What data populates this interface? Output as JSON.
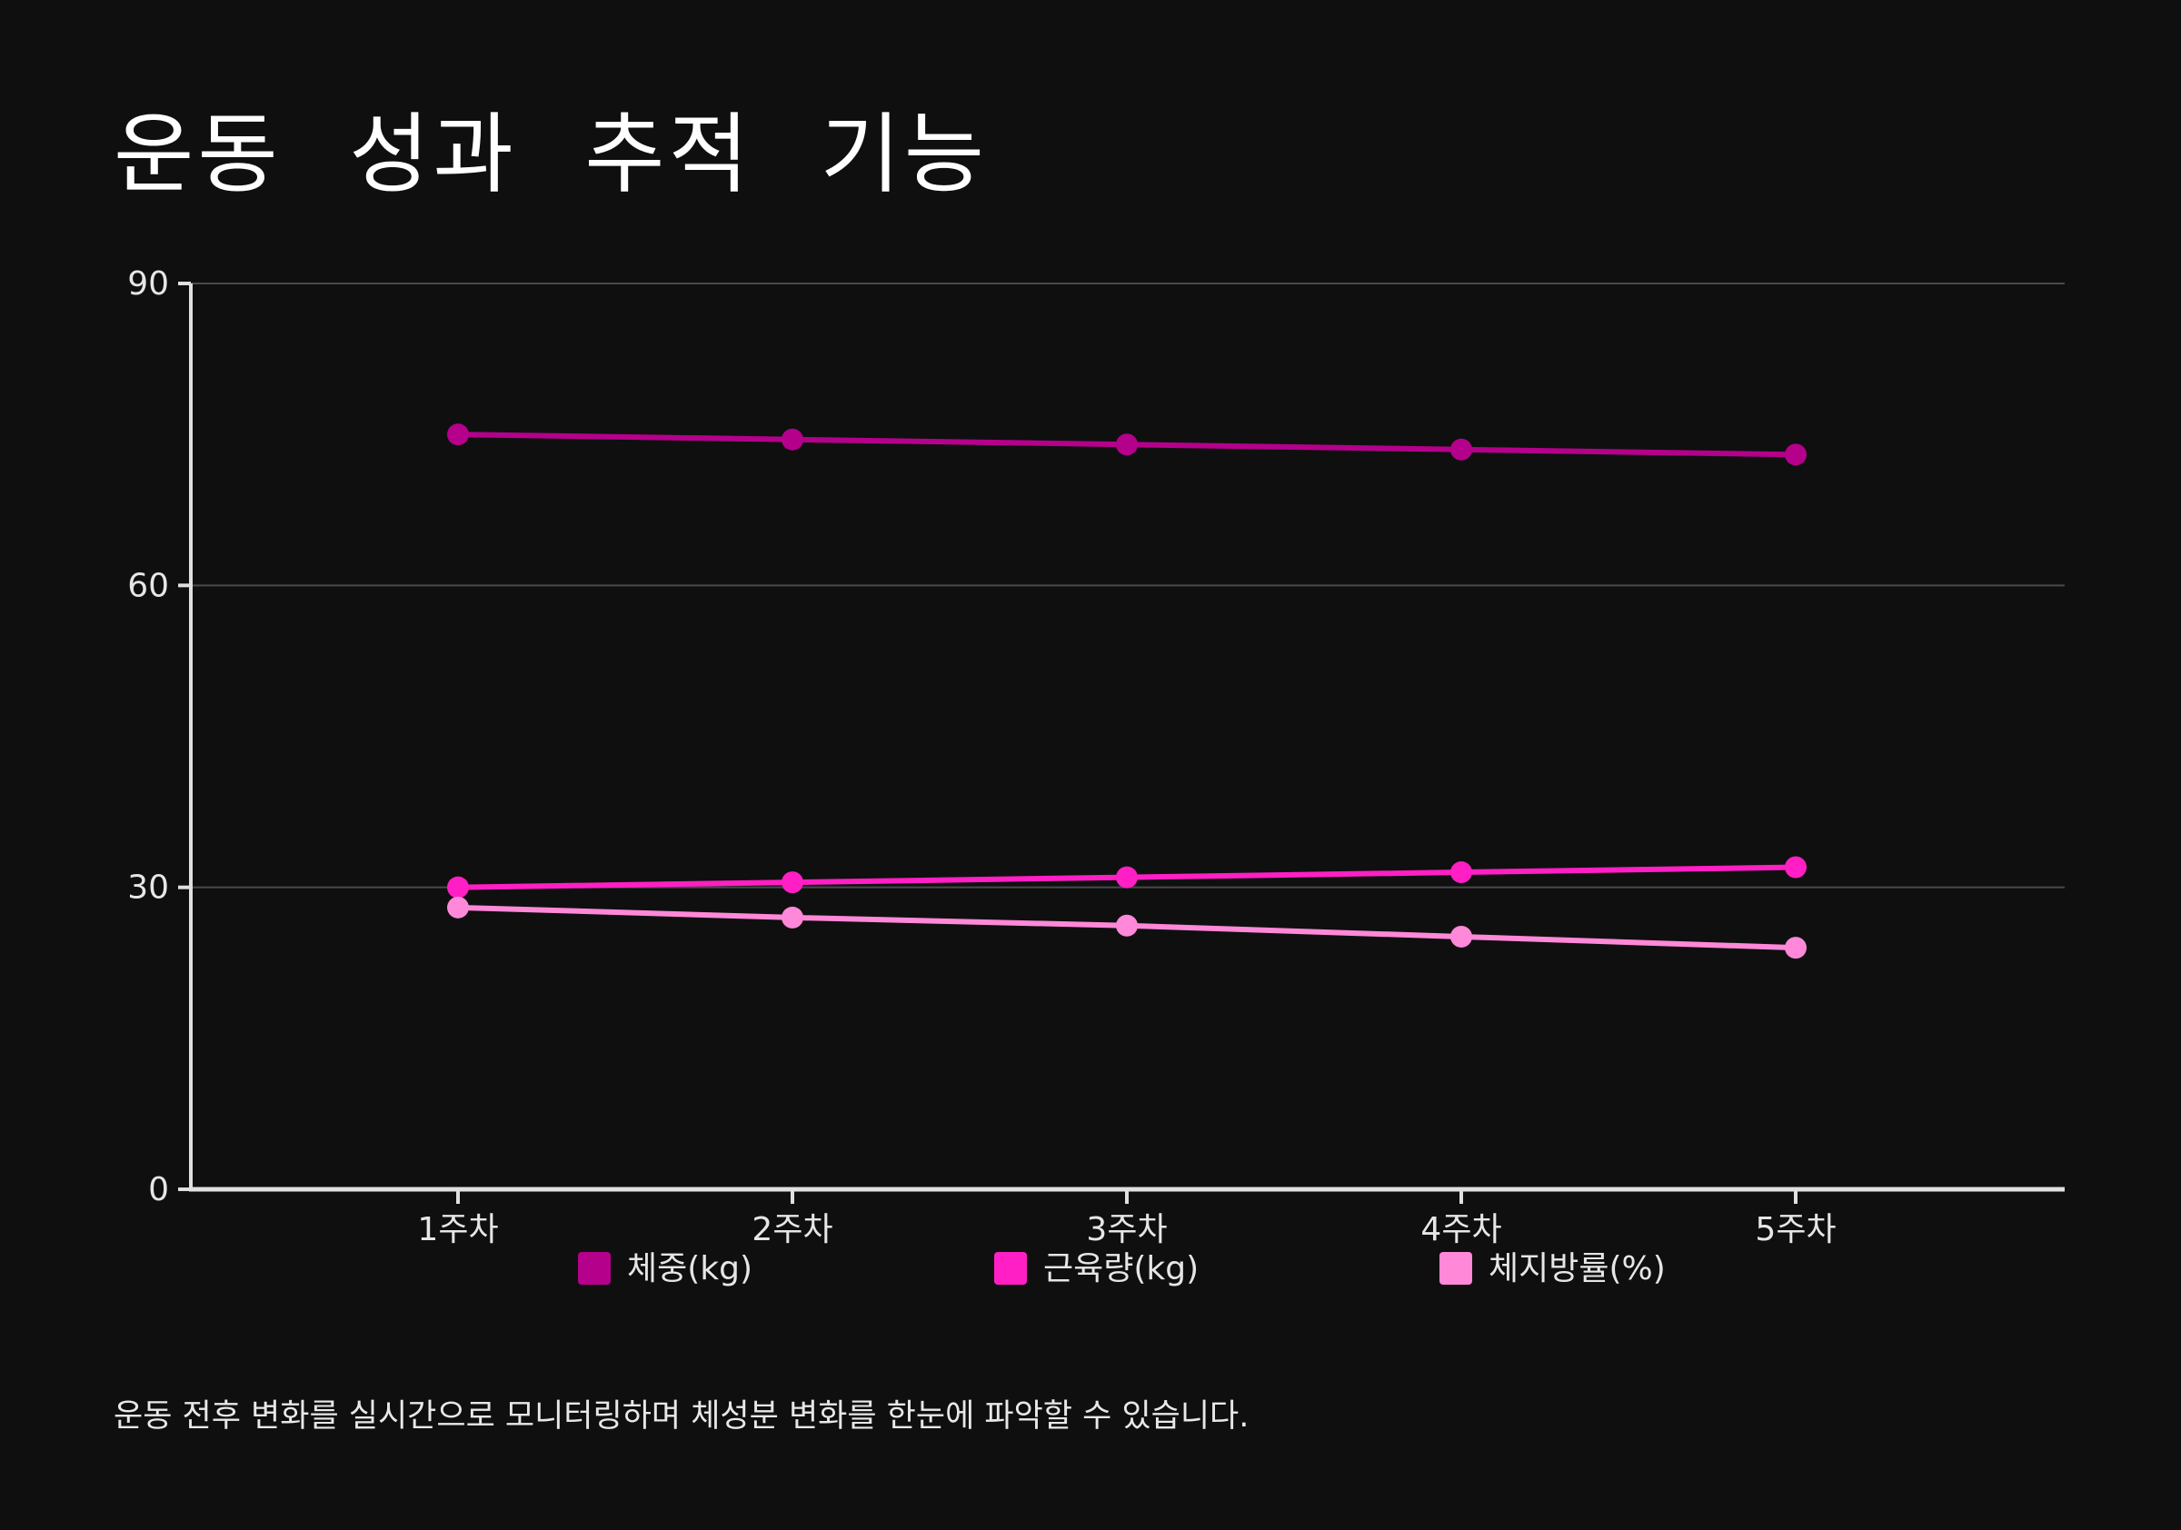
{
  "title": "운동 성과 추적 기능",
  "footnote": "운동 전후 변화를 실시간으로 모니터링하며 체성분 변화를 한눈에 파악할 수 있습니다.",
  "colors": {
    "background": "#0f0f10",
    "axis": "#e0e0e0",
    "grid": "#4a4a4a"
  },
  "chart_data": {
    "type": "line",
    "x": [
      "1주차",
      "2주차",
      "3주차",
      "4주차",
      "5주차"
    ],
    "ylim": [
      0,
      90
    ],
    "yticks": [
      0,
      30,
      60,
      90
    ],
    "grid": "horizontal",
    "legend_position": "bottom",
    "series": [
      {
        "name": "체중(kg)",
        "color": "#b5008c",
        "values": [
          75,
          74.5,
          74,
          73.5,
          73
        ]
      },
      {
        "name": "근육량(kg)",
        "color": "#ff1fc4",
        "values": [
          30,
          30.5,
          31,
          31.5,
          32
        ]
      },
      {
        "name": "체지방률(%)",
        "color": "#ff88d8",
        "values": [
          28,
          27,
          26.2,
          25.1,
          24
        ]
      }
    ]
  }
}
